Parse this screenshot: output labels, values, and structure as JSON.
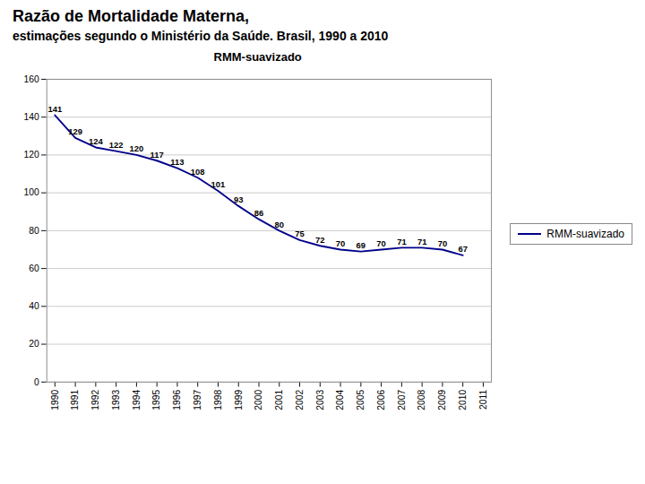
{
  "chart_data": {
    "type": "line",
    "title": "Razão de Mortalidade Materna,",
    "subtitle": "estimações segundo o Ministério da Saúde. Brasil, 1990 a 2010",
    "annotations": [
      "RMM-suavizado"
    ],
    "x": [
      1990,
      1991,
      1992,
      1993,
      1994,
      1995,
      1996,
      1997,
      1998,
      1999,
      2000,
      2001,
      2002,
      2003,
      2004,
      2005,
      2006,
      2007,
      2008,
      2009,
      2010
    ],
    "series": [
      {
        "name": "RMM-suavizado",
        "color": "#00008B",
        "values": [
          141,
          129,
          124,
          122,
          120,
          117,
          113,
          108,
          101,
          93,
          86,
          80,
          75,
          72,
          70,
          69,
          70,
          71,
          71,
          70,
          67
        ]
      }
    ],
    "xlim": [
      1989.6,
      2011.4
    ],
    "xticks": [
      1990,
      1991,
      1992,
      1993,
      1994,
      1995,
      1996,
      1997,
      1998,
      1999,
      2000,
      2001,
      2002,
      2003,
      2004,
      2005,
      2006,
      2007,
      2008,
      2009,
      2010,
      2011
    ],
    "ylim": [
      0,
      160
    ],
    "yticks": [
      0,
      20,
      40,
      60,
      80,
      100,
      120,
      140,
      160
    ],
    "grid": true,
    "legend": "right",
    "data_labels": true
  }
}
